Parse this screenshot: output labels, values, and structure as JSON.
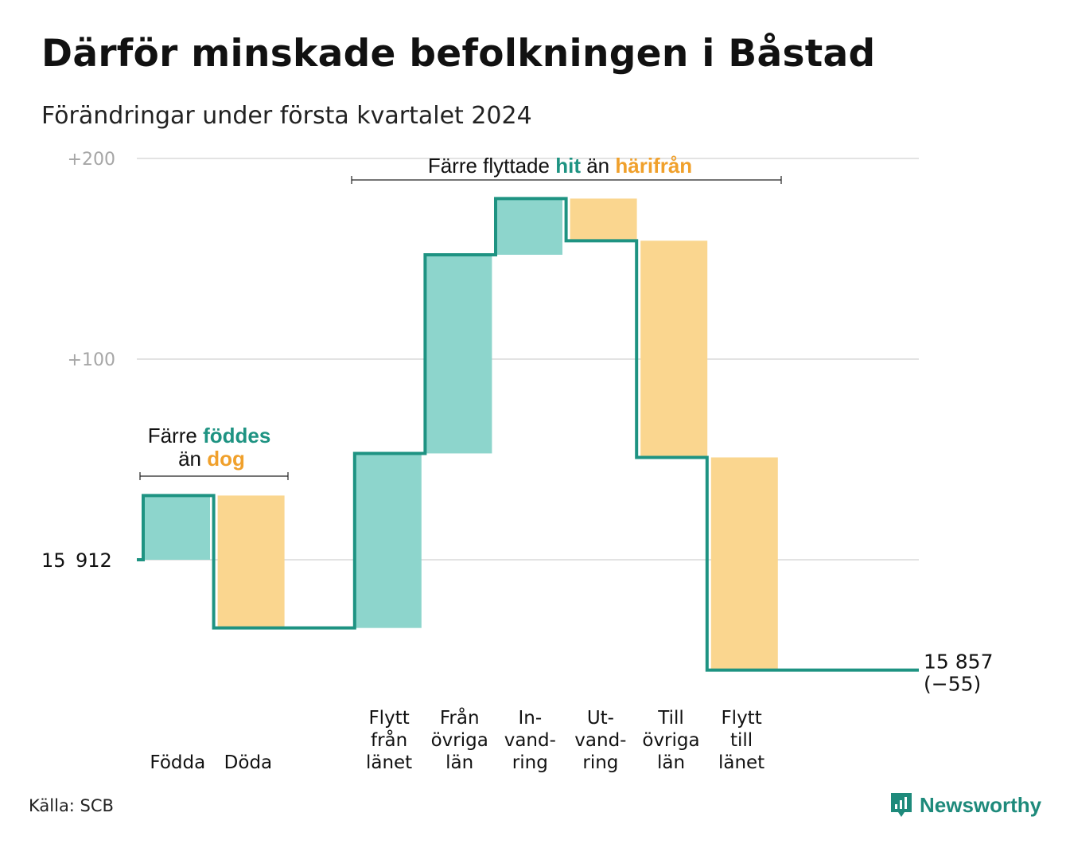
{
  "header": {
    "title": "Därför minskade befolkningen i Båstad",
    "subtitle": "Förändringar under första kvartalet 2024"
  },
  "source": "Källa: SCB",
  "brand": {
    "name": "Newsworthy",
    "icon": "newsworthy-logo-icon"
  },
  "colors": {
    "inflow": "#8dd5cc",
    "outflow": "#fad68f",
    "line": "#1e9382",
    "grid": "#e3e3e3",
    "axis_text": "#a6a6a6",
    "teal_text": "#1e9382",
    "orange_text": "#f0a02b"
  },
  "annotations": {
    "births_deaths": {
      "part1": "Färre",
      "part2": "föddes",
      "part3": "än",
      "part4": "dog"
    },
    "migration": {
      "part1": "Färre flyttade",
      "part2": "hit",
      "part3": "än",
      "part4": "härifrån"
    }
  },
  "chart_data": {
    "type": "waterfall",
    "title": "Därför minskade befolkningen i Båstad",
    "subtitle": "Förändringar under första kvartalet 2024",
    "baseline": 15912,
    "baseline_label": "15 912",
    "end_value": 15857,
    "end_label": "15 857",
    "change_label": "(−55)",
    "y_ticks": [
      {
        "offset": 100,
        "label": "+100"
      },
      {
        "offset": 200,
        "label": "+200"
      }
    ],
    "ylim_offset": [
      -60,
      200
    ],
    "grid": true,
    "steps": [
      {
        "label": "Födda",
        "label_lines": [
          "Födda"
        ],
        "value": 32,
        "kind": "inflow"
      },
      {
        "label": "Döda",
        "label_lines": [
          "Döda"
        ],
        "value": -66,
        "kind": "outflow"
      },
      {
        "label": "",
        "label_lines": [],
        "value": 0,
        "kind": "gap"
      },
      {
        "label": "Flytt från länet",
        "label_lines": [
          "Flytt",
          "från",
          "länet"
        ],
        "value": 87,
        "kind": "inflow"
      },
      {
        "label": "Från övriga län",
        "label_lines": [
          "Från",
          "övriga",
          "län"
        ],
        "value": 99,
        "kind": "inflow"
      },
      {
        "label": "In-vandring",
        "label_lines": [
          "In-",
          "vand-",
          "ring"
        ],
        "value": 28,
        "kind": "inflow"
      },
      {
        "label": "Ut-vandring",
        "label_lines": [
          "Ut-",
          "vand-",
          "ring"
        ],
        "value": -21,
        "kind": "outflow"
      },
      {
        "label": "Till övriga län",
        "label_lines": [
          "Till",
          "övriga",
          "län"
        ],
        "value": -108,
        "kind": "outflow"
      },
      {
        "label": "Flytt till länet",
        "label_lines": [
          "Flytt",
          "till",
          "länet"
        ],
        "value": -106,
        "kind": "outflow"
      }
    ]
  }
}
